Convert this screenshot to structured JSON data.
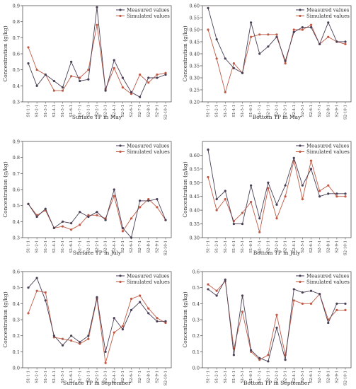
{
  "colors": {
    "measured": "#4a3f55",
    "simulated": "#c05a46",
    "axis": "#555555",
    "grid": "#e6e6e6"
  },
  "chart_data": [
    {
      "type": "line",
      "title": "Surface TP in May",
      "ylabel": "Concentration (g/kg)",
      "ylim": [
        0.3,
        0.9
      ],
      "yticks": [
        0.3,
        0.4,
        0.5,
        0.6,
        0.7,
        0.8,
        0.9
      ],
      "legend": "top-right",
      "grid": false,
      "categories": [
        "S1-1-1",
        "S1-2-1",
        "S1-3-1",
        "S1-4-1",
        "S1-5-1",
        "S1-6-1",
        "S1-7-1",
        "S2-1-1",
        "S2-2-1",
        "S2-3-1",
        "S2-4-1",
        "S2-5-1",
        "S2-6-1",
        "S2-7-1",
        "S2-8-1",
        "S2-9-1",
        "S2-10-1"
      ],
      "series": [
        {
          "name": "Measured values",
          "key": "measured",
          "values": [
            0.54,
            0.4,
            0.47,
            0.43,
            0.39,
            0.55,
            0.43,
            0.44,
            0.89,
            0.37,
            0.56,
            0.45,
            0.36,
            0.33,
            0.45,
            0.45,
            0.47
          ]
        },
        {
          "name": "Simulated values",
          "key": "simulated",
          "values": [
            0.64,
            0.5,
            0.47,
            0.37,
            0.37,
            0.46,
            0.45,
            0.5,
            0.78,
            0.38,
            0.51,
            0.39,
            0.35,
            0.47,
            0.42,
            0.47,
            0.48
          ]
        }
      ]
    },
    {
      "type": "line",
      "title": "Bottom TP in May",
      "ylabel": "Concentration (g/kg)",
      "ylim": [
        0.2,
        0.6
      ],
      "yticks": [
        0.2,
        0.25,
        0.3,
        0.35,
        0.4,
        0.45,
        0.5,
        0.55,
        0.6
      ],
      "legend": "top-right",
      "grid": false,
      "categories": [
        "S1-1-1",
        "S1-2-1",
        "S1-3-1",
        "S1-4-1",
        "S1-5-1",
        "S1-6-1",
        "S1-7-1",
        "S2-1-1",
        "S2-2-1",
        "S2-3-1",
        "S2-4-1",
        "S2-5-1",
        "S2-6-1",
        "S2-7-1",
        "S2-8-1",
        "S2-9-1",
        "S2-10-1"
      ],
      "series": [
        {
          "name": "Measured values",
          "key": "measured",
          "values": [
            0.59,
            0.46,
            0.38,
            0.34,
            0.32,
            0.53,
            0.4,
            0.43,
            0.47,
            0.37,
            0.49,
            0.51,
            0.51,
            0.44,
            0.53,
            0.45,
            0.45
          ]
        },
        {
          "name": "Simulated values",
          "key": "simulated",
          "values": [
            0.5,
            0.38,
            0.24,
            0.36,
            0.32,
            0.47,
            0.48,
            0.48,
            0.48,
            0.36,
            0.5,
            0.5,
            0.52,
            0.44,
            0.47,
            0.45,
            0.44
          ]
        }
      ]
    },
    {
      "type": "line",
      "title": "Surface TP in July",
      "ylabel": "Concentration (g/kg)",
      "ylim": [
        0.3,
        0.9
      ],
      "yticks": [
        0.3,
        0.4,
        0.5,
        0.6,
        0.7,
        0.8,
        0.9
      ],
      "legend": "top-right",
      "grid": false,
      "categories": [
        "S1-1-1",
        "S1-2-1",
        "S1-3-1",
        "S1-4-1",
        "S1-5-1",
        "S1-6-1",
        "S1-7-1",
        "S2-1-1",
        "S2-2-1",
        "S2-3-1",
        "S2-4-1",
        "S2-5-1",
        "S2-6-1",
        "S2-7-1",
        "S2-8-1",
        "S2-9-1",
        "S2-10-1"
      ],
      "series": [
        {
          "name": "Measured values",
          "key": "measured",
          "values": [
            0.51,
            0.43,
            0.48,
            0.36,
            0.4,
            0.39,
            0.46,
            0.43,
            0.46,
            0.41,
            0.6,
            0.36,
            0.3,
            0.53,
            0.53,
            0.54,
            0.41
          ]
        },
        {
          "name": "Simulated values",
          "key": "simulated",
          "values": [
            0.51,
            0.44,
            0.47,
            0.36,
            0.37,
            0.35,
            0.38,
            0.44,
            0.44,
            0.42,
            0.56,
            0.34,
            0.42,
            0.49,
            0.54,
            0.49,
            0.41
          ]
        }
      ]
    },
    {
      "type": "line",
      "title": "Bottom TP in July",
      "ylabel": "Concentration (g/kg)",
      "ylim": [
        0.3,
        0.65
      ],
      "yticks": [
        0.3,
        0.35,
        0.4,
        0.45,
        0.5,
        0.55,
        0.6
      ],
      "legend": "top-right",
      "grid": false,
      "categories": [
        "S1-1-1",
        "S1-2-1",
        "S1-3-1",
        "S1-4-1",
        "S1-5-1",
        "S1-6-1",
        "S1-7-1",
        "S2-1-1",
        "S2-2-1",
        "S2-3-1",
        "S2-4-1",
        "S2-5-1",
        "S2-6-1",
        "S2-7-1",
        "S2-8-1",
        "S2-9-1",
        "S2-10-1"
      ],
      "series": [
        {
          "name": "Measured values",
          "key": "measured",
          "values": [
            0.62,
            0.44,
            0.47,
            0.35,
            0.35,
            0.49,
            0.37,
            0.5,
            0.42,
            0.49,
            0.59,
            0.49,
            0.55,
            0.45,
            0.46,
            0.46,
            0.46
          ]
        },
        {
          "name": "Simulated values",
          "key": "simulated",
          "values": [
            0.52,
            0.4,
            0.44,
            0.36,
            0.39,
            0.43,
            0.32,
            0.48,
            0.37,
            0.45,
            0.58,
            0.44,
            0.58,
            0.47,
            0.49,
            0.45,
            0.45
          ]
        }
      ]
    },
    {
      "type": "line",
      "title": "Surface TP in September",
      "ylabel": "Concentration (g/kg)",
      "ylim": [
        0.0,
        0.6
      ],
      "yticks": [
        0.0,
        0.1,
        0.2,
        0.3,
        0.4,
        0.5,
        0.6
      ],
      "legend": "top-right",
      "grid": false,
      "categories": [
        "S1-1-1",
        "S1-2-1",
        "S1-3-1",
        "S1-4-1",
        "S1-5-1",
        "S1-6-1",
        "S1-7-1",
        "S2-1-1",
        "S2-2-1",
        "S2-3-1",
        "S2-4-1",
        "S2-5-1",
        "S2-6-1",
        "S2-7-1",
        "S2-8-1",
        "S2-9-1",
        "S2-10-1"
      ],
      "series": [
        {
          "name": "Measured values",
          "key": "measured",
          "values": [
            0.5,
            0.56,
            0.42,
            0.2,
            0.14,
            0.2,
            0.16,
            0.2,
            0.44,
            0.1,
            0.31,
            0.24,
            0.36,
            0.41,
            0.34,
            0.29,
            0.29
          ]
        },
        {
          "name": "Simulated values",
          "key": "simulated",
          "values": [
            0.34,
            0.48,
            0.47,
            0.19,
            0.18,
            0.17,
            0.15,
            0.18,
            0.43,
            0.03,
            0.22,
            0.26,
            0.43,
            0.45,
            0.37,
            0.31,
            0.28
          ]
        }
      ]
    },
    {
      "type": "line",
      "title": "Bottom TP in September",
      "ylabel": "Concentration (g/kg)",
      "ylim": [
        0.0,
        0.6
      ],
      "yticks": [
        0.0,
        0.1,
        0.2,
        0.3,
        0.4,
        0.5,
        0.6
      ],
      "legend": "top-right",
      "grid": false,
      "categories": [
        "S1-1-1",
        "S1-2-1",
        "S1-3-1",
        "S1-4-1",
        "S1-5-1",
        "S1-6-1",
        "S1-7-1",
        "S2-1-1",
        "S2-2-1",
        "S2-3-1",
        "S2-4-1",
        "S2-5-1",
        "S2-6-1",
        "S2-7-1",
        "S2-8-1",
        "S2-9-1",
        "S2-10-1"
      ],
      "series": [
        {
          "name": "Measured values",
          "key": "measured",
          "values": [
            0.49,
            0.45,
            0.55,
            0.08,
            0.45,
            0.11,
            0.06,
            0.04,
            0.25,
            0.05,
            0.49,
            0.47,
            0.48,
            0.46,
            0.28,
            0.4,
            0.4
          ]
        },
        {
          "name": "Simulated values",
          "key": "simulated",
          "values": [
            0.52,
            0.48,
            0.54,
            0.12,
            0.35,
            0.1,
            0.05,
            0.08,
            0.33,
            0.08,
            0.42,
            0.4,
            0.4,
            0.46,
            0.3,
            0.36,
            0.36
          ]
        }
      ]
    }
  ]
}
